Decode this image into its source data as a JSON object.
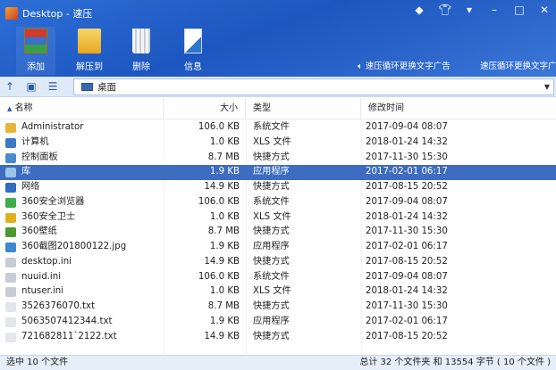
{
  "window": {
    "title": "Desktop - 速压",
    "icons": [
      "skin-diamond-icon",
      "shirt-icon",
      "menu-dropdown-icon",
      "minimize-icon",
      "maximize-icon",
      "close-icon"
    ]
  },
  "toolbar": {
    "items": [
      {
        "label": "添加",
        "icon": "add-archive-icon"
      },
      {
        "label": "解压到",
        "icon": "extract-folder-icon"
      },
      {
        "label": "删除",
        "icon": "trash-icon"
      },
      {
        "label": "信息",
        "icon": "info-doc-icon"
      }
    ],
    "ad1": "速压循环更换文字广告",
    "ad2": "速压循环更换文字广告"
  },
  "address": {
    "value": "桌面"
  },
  "columns": {
    "name": "名称",
    "size": "大小",
    "type": "类型",
    "date": "修改时间"
  },
  "files": [
    {
      "name": "Administrator",
      "size": "106.0 KB",
      "type": "系统文件",
      "date": "2017-09-04 08:07",
      "icon": "folder",
      "color": "#e8b43a"
    },
    {
      "name": "计算机",
      "size": "1.0 KB",
      "type": "XLS 文件",
      "date": "2018-01-24 14:32",
      "icon": "computer",
      "color": "#3a78c8"
    },
    {
      "name": "控制面板",
      "size": "8.7 MB",
      "type": "快捷方式",
      "date": "2017-11-30 15:30",
      "icon": "control-panel",
      "color": "#4a8ad0"
    },
    {
      "name": "库",
      "size": "1.9 KB",
      "type": "应用程序",
      "date": "2017-02-01 06:17",
      "icon": "library",
      "color": "#9ac4e8",
      "selected": true
    },
    {
      "name": "网络",
      "size": "14.9 KB",
      "type": "快捷方式",
      "date": "2017-08-15 20:52",
      "icon": "network",
      "color": "#2f6cc0"
    },
    {
      "name": "360安全浏览器",
      "size": "106.0 KB",
      "type": "系统文件",
      "date": "2017-09-04 08:07",
      "icon": "browser-360",
      "color": "#3cae4a"
    },
    {
      "name": "360安全卫士",
      "size": "1.0 KB",
      "type": "XLS 文件",
      "date": "2018-01-24 14:32",
      "icon": "security-360",
      "color": "#e0b020"
    },
    {
      "name": "360壁纸",
      "size": "8.7 MB",
      "type": "快捷方式",
      "date": "2017-11-30 15:30",
      "icon": "wallpaper-360",
      "color": "#4a9a30"
    },
    {
      "name": "360截图201800122.jpg",
      "size": "1.9 KB",
      "type": "应用程序",
      "date": "2017-02-01 06:17",
      "icon": "image",
      "color": "#3a88d0"
    },
    {
      "name": "desktop.ini",
      "size": "14.9 KB",
      "type": "快捷方式",
      "date": "2017-08-15 20:52",
      "icon": "ini-file",
      "color": "#c8ccd4"
    },
    {
      "name": "nuuid.ini",
      "size": "106.0 KB",
      "type": "系统文件",
      "date": "2017-09-04 08:07",
      "icon": "ini-file",
      "color": "#c8ccd4"
    },
    {
      "name": "ntuser.ini",
      "size": "1.0 KB",
      "type": "XLS 文件",
      "date": "2018-01-24 14:32",
      "icon": "ini-file",
      "color": "#c8ccd4"
    },
    {
      "name": "3526376070.txt",
      "size": "8.7 MB",
      "type": "快捷方式",
      "date": "2017-11-30 15:30",
      "icon": "text-file",
      "color": "#e4e6ea"
    },
    {
      "name": "5063507412344.txt",
      "size": "1.9 KB",
      "type": "应用程序",
      "date": "2017-02-01 06:17",
      "icon": "text-file",
      "color": "#e4e6ea"
    },
    {
      "name": "721682811`2122.txt",
      "size": "14.9 KB",
      "type": "快捷方式",
      "date": "2017-08-15 20:52",
      "icon": "text-file",
      "color": "#e4e6ea"
    }
  ],
  "status": {
    "left": "选中 10 个文件",
    "right": "总计 32 个文件夹 和 13554 字节 ( 10 个文件 )"
  }
}
